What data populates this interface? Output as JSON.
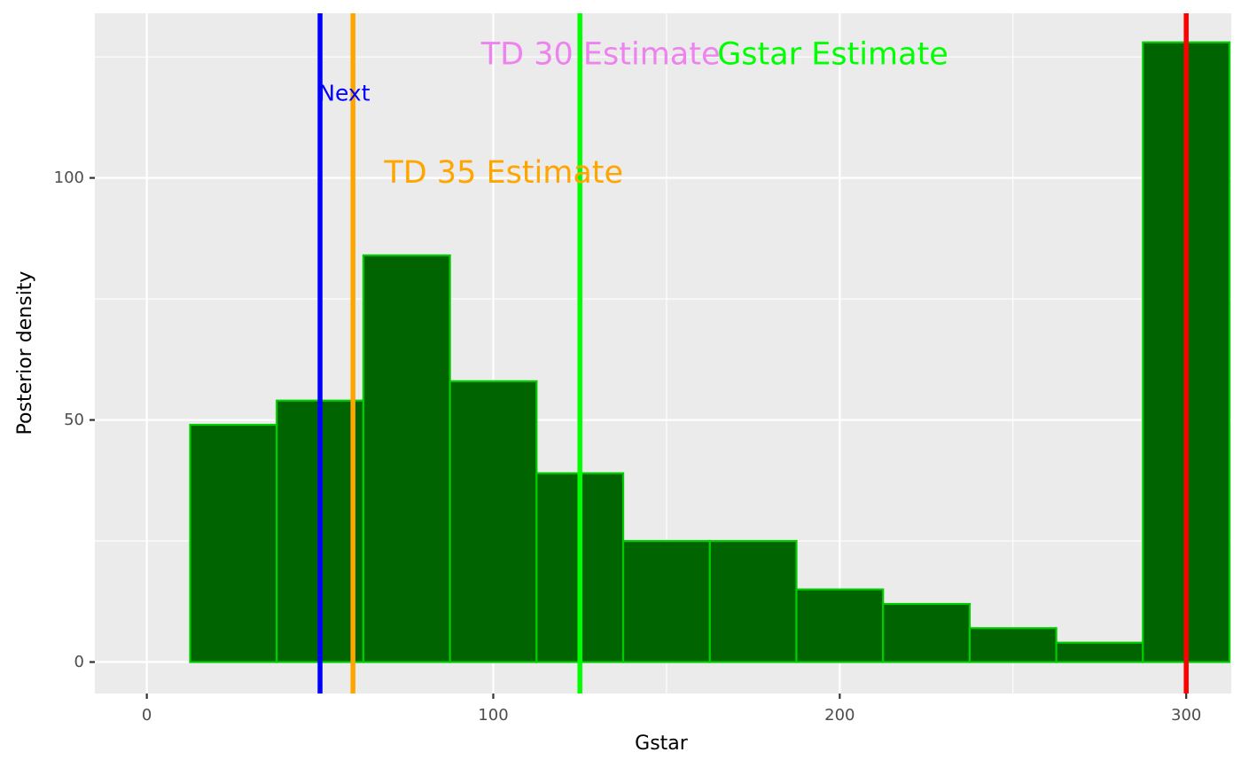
{
  "chart_data": {
    "type": "bar",
    "subtype": "histogram",
    "xlabel": "Gstar",
    "ylabel": "Posterior density",
    "xlim": [
      -15,
      313
    ],
    "ylim": [
      -6.5,
      134
    ],
    "x_ticks": [
      0,
      100,
      200,
      300
    ],
    "y_ticks": [
      0,
      50,
      100
    ],
    "grid": true,
    "bin_width": 25,
    "bins": [
      {
        "start": 12.5,
        "end": 37.5,
        "value": 49
      },
      {
        "start": 37.5,
        "end": 62.5,
        "value": 54
      },
      {
        "start": 62.5,
        "end": 87.5,
        "value": 84
      },
      {
        "start": 87.5,
        "end": 112.5,
        "value": 58
      },
      {
        "start": 112.5,
        "end": 137.5,
        "value": 39
      },
      {
        "start": 137.5,
        "end": 162.5,
        "value": 25
      },
      {
        "start": 162.5,
        "end": 187.5,
        "value": 25
      },
      {
        "start": 187.5,
        "end": 212.5,
        "value": 15
      },
      {
        "start": 212.5,
        "end": 237.5,
        "value": 12
      },
      {
        "start": 237.5,
        "end": 262.5,
        "value": 7
      },
      {
        "start": 262.5,
        "end": 287.5,
        "value": 4
      },
      {
        "start": 287.5,
        "end": 312.5,
        "value": 128
      }
    ],
    "colors": {
      "panel_background": "#ebebeb",
      "grid_line": "#ffffff",
      "bar_fill": "#006400",
      "bar_outline": "#00cd00"
    },
    "vlines": [
      {
        "x": 50,
        "color": "#0000ff"
      },
      {
        "x": 59.5,
        "color": "#ffa500"
      },
      {
        "x": 125,
        "color": "#00ff00"
      },
      {
        "x": 300,
        "color": "#ff0000"
      }
    ],
    "annotations": [
      {
        "text": "TD 30 Estimate",
        "x": 131,
        "y": 125.5,
        "color": "#ee82ee",
        "size": "large"
      },
      {
        "text": "Gstar Estimate",
        "x": 198,
        "y": 125.5,
        "color": "#00ff00",
        "size": "large"
      },
      {
        "text": "Next",
        "x": 57,
        "y": 117.5,
        "color": "#0000ff",
        "size": "small"
      },
      {
        "text": "TD 35 Estimate",
        "x": 103,
        "y": 101,
        "color": "#ffa500",
        "size": "large"
      }
    ]
  }
}
